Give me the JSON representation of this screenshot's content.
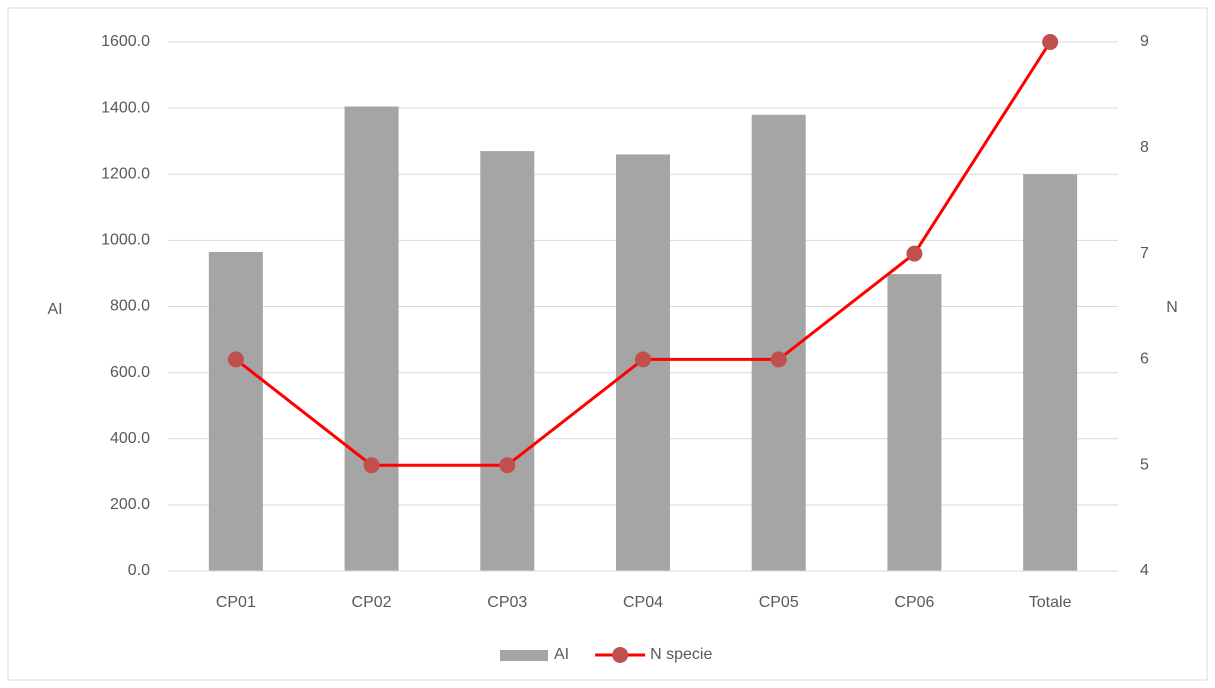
{
  "chart_data": {
    "type": "combo",
    "categories": [
      "CP01",
      "CP02",
      "CP03",
      "CP04",
      "CP05",
      "CP06",
      "Totale"
    ],
    "series": [
      {
        "name": "AI",
        "type": "bar",
        "axis": "y",
        "color": "#a5a5a5",
        "values": [
          965,
          1405,
          1270,
          1260,
          1380,
          898,
          1200
        ]
      },
      {
        "name": "N specie",
        "type": "line",
        "axis": "y2",
        "color": "#ff0000",
        "marker_color": "#c0504d",
        "values": [
          6,
          5,
          5,
          6,
          6,
          7,
          9
        ]
      }
    ],
    "ylabel": "AI",
    "y2label": "N",
    "ylim": [
      0,
      1600
    ],
    "yticks": [
      {
        "value": 0,
        "label": "0.0"
      },
      {
        "value": 200,
        "label": "200.0"
      },
      {
        "value": 400,
        "label": "400.0"
      },
      {
        "value": 600,
        "label": "600.0"
      },
      {
        "value": 800,
        "label": "800.0"
      },
      {
        "value": 1000,
        "label": "1000.0"
      },
      {
        "value": 1200,
        "label": "1200.0"
      },
      {
        "value": 1400,
        "label": "1400.0"
      },
      {
        "value": 1600,
        "label": "1600.0"
      }
    ],
    "y2lim": [
      4,
      9
    ],
    "y2ticks": [
      4,
      5,
      6,
      7,
      8,
      9
    ],
    "grid": true,
    "legend": "bottom"
  }
}
